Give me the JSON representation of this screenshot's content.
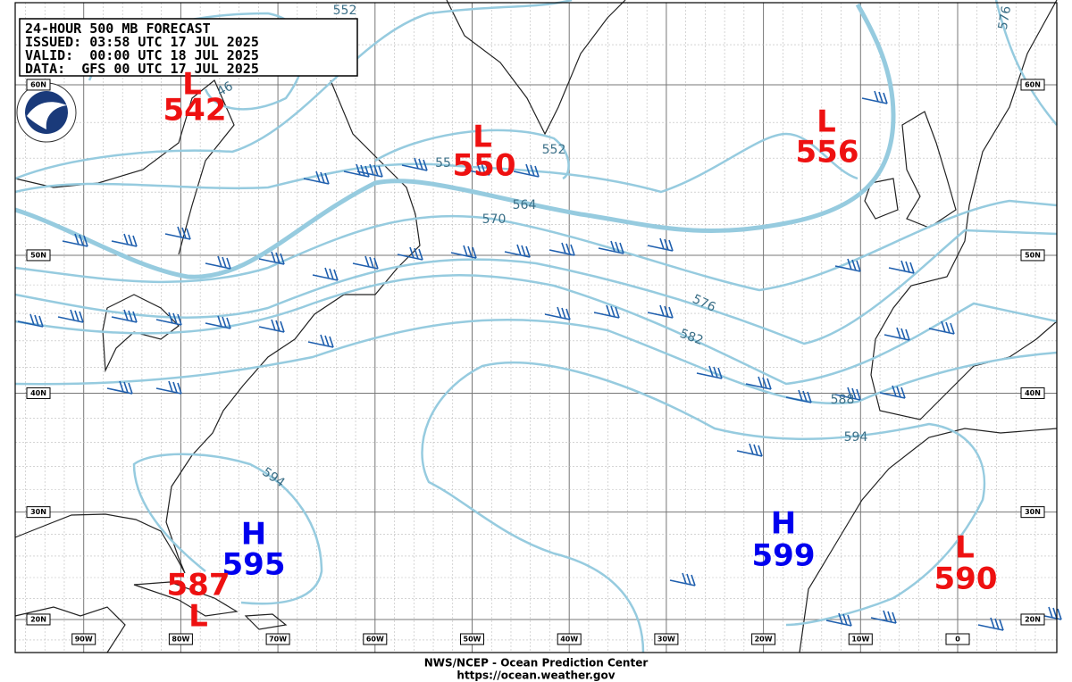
{
  "header": {
    "lines": [
      "24-HOUR 500 MB FORECAST",
      "ISSUED: 03:58 UTC 17 JUL 2025",
      "VALID:  00:00 UTC 18 JUL 2025",
      "DATA:  GFS 00 UTC 17 JUL 2025"
    ]
  },
  "longitude_labels": [
    "90W",
    "80W",
    "70W",
    "60W",
    "50W",
    "40W",
    "30W",
    "20W",
    "10W",
    "0"
  ],
  "latitude_labels": [
    "60N",
    "50N",
    "40N",
    "30N",
    "20N"
  ],
  "centers": [
    {
      "type": "L",
      "value": 542
    },
    {
      "type": "L",
      "value": 550
    },
    {
      "type": "L",
      "value": 556
    },
    {
      "type": "H",
      "value": 595
    },
    {
      "type": "H",
      "value": 599
    },
    {
      "type": "L",
      "value": 587
    },
    {
      "type": "L",
      "value": 590
    }
  ],
  "contour_labels": [
    "552",
    "46",
    "55",
    "552",
    "564",
    "570",
    "576",
    "582",
    "588",
    "594",
    "594",
    "576"
  ],
  "footer": {
    "agency": "NWS/NCEP - Ocean Prediction Center",
    "url": "https://ocean.weather.gov"
  }
}
